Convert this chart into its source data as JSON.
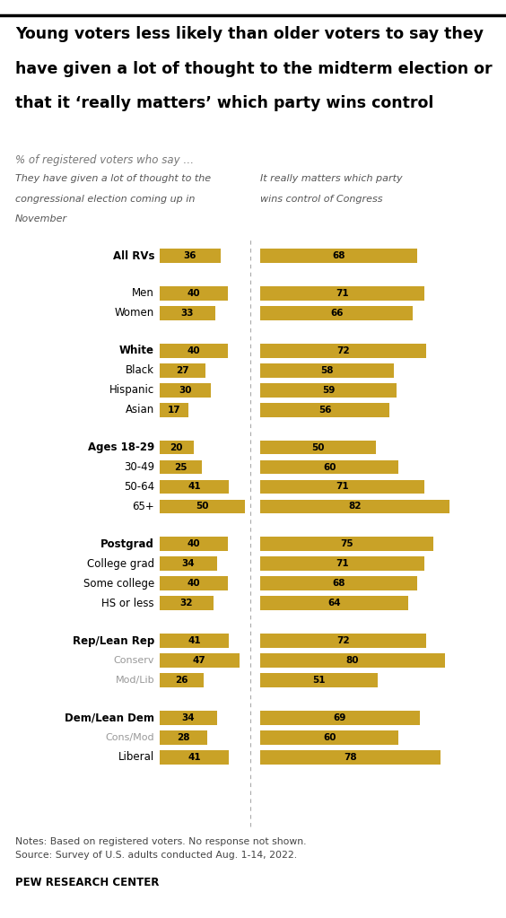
{
  "title_line1": "Young voters less likely than older voters to say they",
  "title_line2": "have given a lot of thought to the midterm election or",
  "title_line3": "that it ‘really matters’ which party wins control",
  "subtitle": "% of registered voters who say …",
  "col1_header_line1": "They have given a lot of thought to the",
  "col1_header_line2": "congressional election coming up in",
  "col1_header_line3": "November",
  "col2_header_line1": "It really matters which party",
  "col2_header_line2": "wins control of Congress",
  "bar_color": "#C9A227",
  "categories": [
    "All RVs",
    "Men",
    "Women",
    "White",
    "Black",
    "Hispanic",
    "Asian",
    "Ages 18-29",
    "30-49",
    "50-64",
    "65+",
    "Postgrad",
    "College grad",
    "Some college",
    "HS or less",
    "Rep/Lean Rep",
    "Conserv",
    "Mod/Lib",
    "Dem/Lean Dem",
    "Cons/Mod",
    "Liberal"
  ],
  "values_left": [
    36,
    40,
    33,
    40,
    27,
    30,
    17,
    20,
    25,
    41,
    50,
    40,
    34,
    40,
    32,
    41,
    47,
    26,
    34,
    28,
    41
  ],
  "values_right": [
    68,
    71,
    66,
    72,
    58,
    59,
    56,
    50,
    60,
    71,
    82,
    75,
    71,
    68,
    64,
    72,
    80,
    51,
    69,
    60,
    78
  ],
  "group_breaks": [
    0,
    2,
    6,
    10,
    14,
    17
  ],
  "bold_labels": [
    "All RVs",
    "White",
    "Ages 18-29",
    "Postgrad",
    "Rep/Lean Rep",
    "Dem/Lean Dem"
  ],
  "gray_labels": [
    "Conserv",
    "Mod/Lib",
    "Cons/Mod"
  ],
  "notes_line1": "Notes: Based on registered voters. No response not shown.",
  "notes_line2": "Source: Survey of U.S. adults conducted Aug. 1-14, 2022.",
  "footer": "PEW RESEARCH CENTER",
  "background_color": "#FFFFFF"
}
